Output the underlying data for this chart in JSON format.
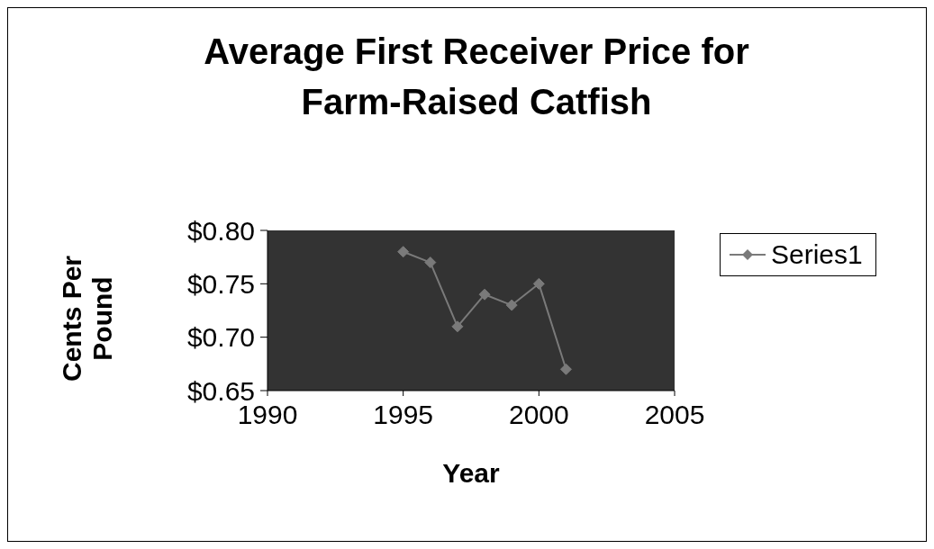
{
  "chart_data": {
    "type": "line",
    "title": "Average First Receiver Price for Farm-Raised Catfish",
    "xlabel": "Year",
    "ylabel": "Cents Per Pound",
    "x": [
      1995,
      1996,
      1997,
      1998,
      1999,
      2000,
      2001
    ],
    "series": [
      {
        "name": "Series1",
        "color": "#7a7a7a",
        "values": [
          0.78,
          0.77,
          0.71,
          0.74,
          0.73,
          0.75,
          0.67
        ]
      }
    ],
    "xlim": [
      1990,
      2005
    ],
    "xticks": [
      1990,
      1995,
      2000,
      2005
    ],
    "ylim": [
      0.65,
      0.8
    ],
    "yticks": [
      {
        "value": 0.65,
        "label": "$0.65"
      },
      {
        "value": 0.7,
        "label": "$0.70"
      },
      {
        "value": 0.75,
        "label": "$0.75"
      },
      {
        "value": 0.8,
        "label": "$0.80"
      }
    ],
    "grid": false,
    "legend": "right",
    "marker": "diamond",
    "line_style": "solid"
  }
}
